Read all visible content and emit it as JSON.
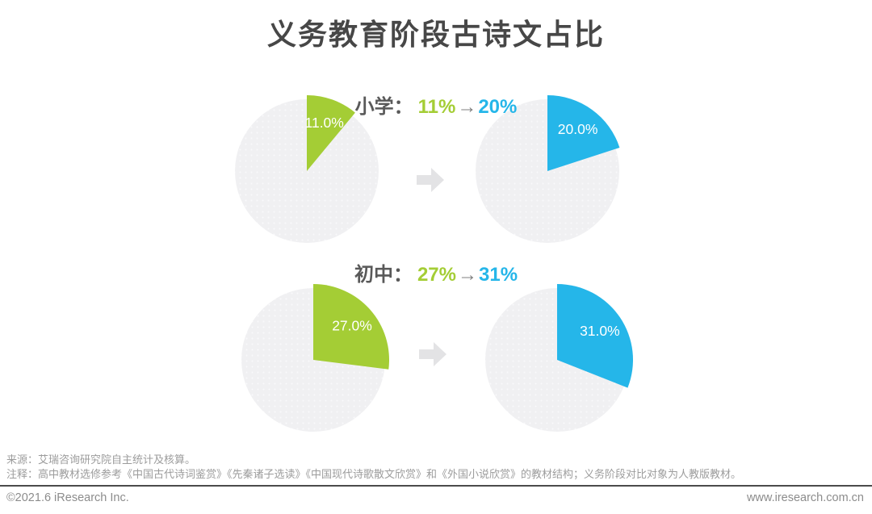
{
  "title": "义务教育阶段古诗文占比",
  "colors": {
    "green": "#a4cd35",
    "blue": "#25b6e9",
    "pie_gray": "#f0f0f2",
    "pie_dot": "#f9f9fb",
    "big_arrow": "#e3e3e5",
    "title_text": "#474747",
    "label_text": "#595959",
    "label_arrow": "#7f7f7f",
    "slice_label": "#ffffff",
    "footer_text": "#9c9c9c",
    "footer_bar_text": "#8c8c8c",
    "rule": "#4b4b4b"
  },
  "chart_data": {
    "type": "pie",
    "title": "义务教育阶段古诗文占比",
    "unit": "%",
    "layout": "two rows of before/after pie pairs, slice starts at 12 o'clock sweeping clockwise, colored slice slightly enlarged over light-gray remainder",
    "rows": [
      {
        "group": "小学",
        "group_label": "小学：",
        "arrow_char": "→",
        "before": {
          "value": 11.0,
          "display": "11%",
          "slice_label": "11.0%"
        },
        "after": {
          "value": 20.0,
          "display": "20%",
          "slice_label": "20.0%"
        }
      },
      {
        "group": "初中",
        "group_label": "初中：",
        "arrow_char": "→",
        "before": {
          "value": 27.0,
          "display": "27%",
          "slice_label": "27.0%"
        },
        "after": {
          "value": 31.0,
          "display": "31%",
          "slice_label": "31.0%"
        }
      }
    ]
  },
  "footer": {
    "source": "来源：艾瑞咨询研究院自主统计及核算。",
    "note": "注释：高中教材选修参考《中国古代诗词鉴赏》《先秦诸子选读》《中国现代诗歌散文欣赏》和《外国小说欣赏》的教材结构；义务阶段对比对象为人教版教材。",
    "copyright": "©2021.6 iResearch Inc.",
    "website": "www.iresearch.com.cn"
  }
}
